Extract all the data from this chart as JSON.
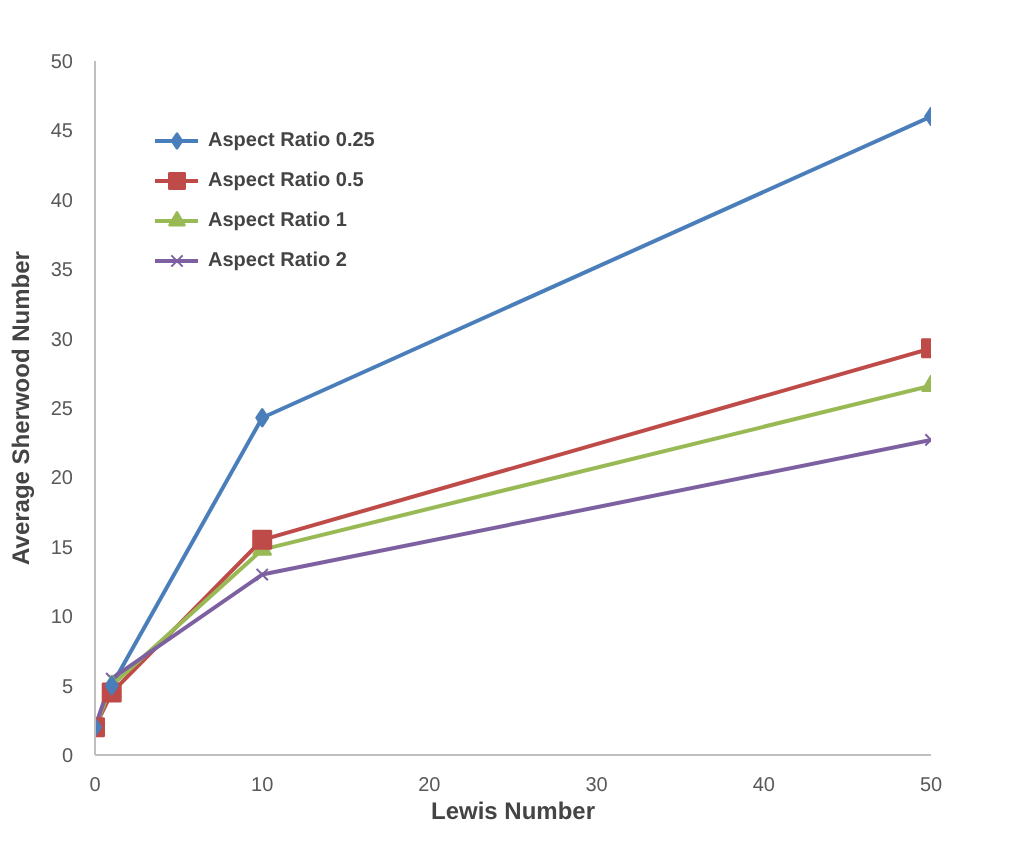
{
  "chart_data": {
    "type": "line",
    "xlabel": "Lewis Number",
    "ylabel": "Average Sherwood Number",
    "x": [
      0,
      1,
      10,
      50
    ],
    "series": [
      {
        "name": "Aspect Ratio 0.25",
        "color": "#4a7ebb",
        "marker": "diamond",
        "values": [
          2,
          5,
          24.3,
          46
        ]
      },
      {
        "name": "Aspect Ratio 0.5",
        "color": "#be4b48",
        "marker": "square",
        "values": [
          2,
          4.5,
          15.5,
          29.3
        ]
      },
      {
        "name": "Aspect Ratio 1",
        "color": "#98b954",
        "marker": "triangle",
        "values": [
          2,
          5,
          14.8,
          26.6
        ]
      },
      {
        "name": "Aspect Ratio 2",
        "color": "#7d60a0",
        "marker": "cross",
        "values": [
          2,
          5.5,
          13,
          22.7
        ]
      }
    ],
    "xlim": [
      0,
      50
    ],
    "xticks": [
      0,
      10,
      20,
      30,
      40,
      50
    ],
    "ylim": [
      0,
      50
    ],
    "yticks": [
      0,
      5,
      10,
      15,
      20,
      25,
      30,
      35,
      40,
      45,
      50
    ],
    "grid": false,
    "legend": "top left",
    "line_style": "solid"
  }
}
